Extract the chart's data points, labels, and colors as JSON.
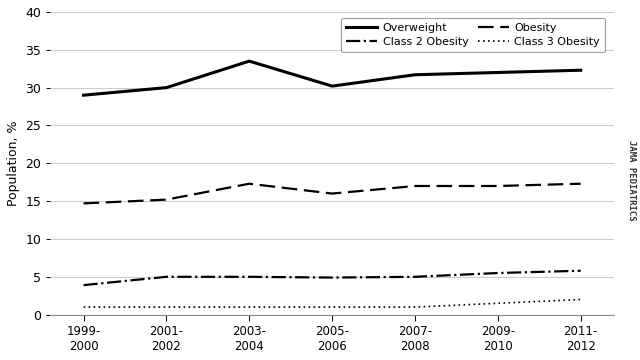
{
  "x_labels_line1": [
    "1999-",
    "2001-",
    "2003-",
    "2005-",
    "2007-",
    "2009-",
    "2011-"
  ],
  "x_labels_line2": [
    "2000",
    "2002",
    "2004",
    "2006",
    "2008",
    "2010",
    "2012"
  ],
  "x_positions": [
    0,
    1,
    2,
    3,
    4,
    5,
    6
  ],
  "overweight": [
    29.0,
    30.0,
    33.5,
    30.2,
    31.7,
    32.0,
    32.3
  ],
  "obesity": [
    14.7,
    15.2,
    17.3,
    16.0,
    17.0,
    17.0,
    17.3
  ],
  "class2_obesity": [
    3.9,
    5.0,
    5.0,
    4.9,
    5.0,
    5.5,
    5.8
  ],
  "class3_obesity": [
    1.0,
    1.0,
    1.0,
    1.0,
    1.0,
    1.5,
    2.0
  ],
  "ylabel": "Population, %",
  "ylim": [
    0,
    40
  ],
  "yticks": [
    0,
    5,
    10,
    15,
    20,
    25,
    30,
    35,
    40
  ],
  "watermark": "JAMA PEDIATRICS",
  "bg_color": "#ffffff",
  "line_color": "#000000",
  "grid_color": "#cccccc"
}
